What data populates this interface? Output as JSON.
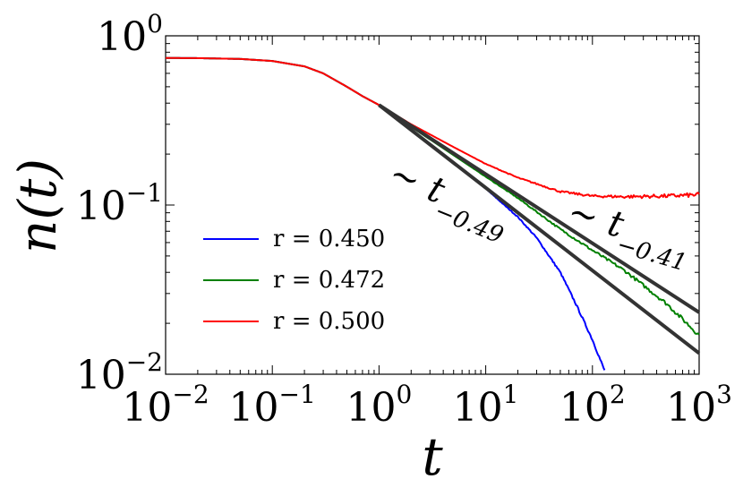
{
  "chart_data": {
    "type": "line",
    "title": "",
    "xlabel": "t",
    "ylabel": "n(t)",
    "xscale": "log",
    "yscale": "log",
    "xlim": [
      0.01,
      1000
    ],
    "ylim": [
      0.01,
      1
    ],
    "grid": false,
    "legend_position": "lower-left",
    "x_ticks": [
      {
        "value": 0.01,
        "base": "10",
        "exp": "−2"
      },
      {
        "value": 0.1,
        "base": "10",
        "exp": "−1"
      },
      {
        "value": 1,
        "base": "10",
        "exp": "0"
      },
      {
        "value": 10,
        "base": "10",
        "exp": "1"
      },
      {
        "value": 100,
        "base": "10",
        "exp": "2"
      },
      {
        "value": 1000,
        "base": "10",
        "exp": "3"
      }
    ],
    "y_ticks": [
      {
        "value": 1,
        "base": "10",
        "exp": "0"
      },
      {
        "value": 0.1,
        "base": "10",
        "exp": "−1"
      },
      {
        "value": 0.01,
        "base": "10",
        "exp": "−2"
      }
    ],
    "series": [
      {
        "name": "r = 0.450",
        "color": "#0000ff",
        "points": [
          [
            0.01,
            0.74
          ],
          [
            0.02,
            0.738
          ],
          [
            0.05,
            0.73
          ],
          [
            0.1,
            0.71
          ],
          [
            0.2,
            0.66
          ],
          [
            0.3,
            0.6
          ],
          [
            0.5,
            0.5
          ],
          [
            0.7,
            0.44
          ],
          [
            1.0,
            0.39
          ],
          [
            2,
            0.28
          ],
          [
            5,
            0.178
          ],
          [
            10,
            0.125
          ],
          [
            20,
            0.085
          ],
          [
            30,
            0.064
          ],
          [
            50,
            0.04
          ],
          [
            70,
            0.026
          ],
          [
            100,
            0.016
          ],
          [
            130,
            0.0105
          ]
        ]
      },
      {
        "name": "r = 0.472",
        "color": "#008000",
        "points": [
          [
            0.01,
            0.74
          ],
          [
            0.02,
            0.738
          ],
          [
            0.05,
            0.73
          ],
          [
            0.1,
            0.71
          ],
          [
            0.2,
            0.66
          ],
          [
            0.3,
            0.6
          ],
          [
            0.5,
            0.5
          ],
          [
            0.7,
            0.44
          ],
          [
            1.0,
            0.39
          ],
          [
            2,
            0.29
          ],
          [
            5,
            0.197
          ],
          [
            10,
            0.147
          ],
          [
            20,
            0.11
          ],
          [
            50,
            0.072
          ],
          [
            100,
            0.054
          ],
          [
            200,
            0.041
          ],
          [
            500,
            0.026
          ],
          [
            1000,
            0.017
          ]
        ]
      },
      {
        "name": "r = 0.500",
        "color": "#ff0000",
        "points": [
          [
            0.01,
            0.74
          ],
          [
            0.02,
            0.738
          ],
          [
            0.05,
            0.73
          ],
          [
            0.1,
            0.71
          ],
          [
            0.2,
            0.66
          ],
          [
            0.3,
            0.6
          ],
          [
            0.5,
            0.5
          ],
          [
            0.7,
            0.44
          ],
          [
            1.0,
            0.39
          ],
          [
            2,
            0.3
          ],
          [
            5,
            0.22
          ],
          [
            10,
            0.175
          ],
          [
            20,
            0.145
          ],
          [
            50,
            0.12
          ],
          [
            100,
            0.113
          ],
          [
            200,
            0.112
          ],
          [
            500,
            0.113
          ],
          [
            1000,
            0.115
          ]
        ]
      },
      {
        "name": "fit_slow",
        "color": "#333333",
        "legend": false,
        "points": [
          [
            1,
            0.39
          ],
          [
            1000,
            0.0232
          ]
        ]
      },
      {
        "name": "fit_fast",
        "color": "#333333",
        "legend": false,
        "points": [
          [
            1,
            0.39
          ],
          [
            1000,
            0.0133
          ]
        ]
      }
    ],
    "annotations": [
      {
        "text": "∼ t",
        "exp": "−0.49",
        "rotation": 22
      },
      {
        "text": "∼ t",
        "exp": "−0.41",
        "rotation": 16
      }
    ]
  }
}
